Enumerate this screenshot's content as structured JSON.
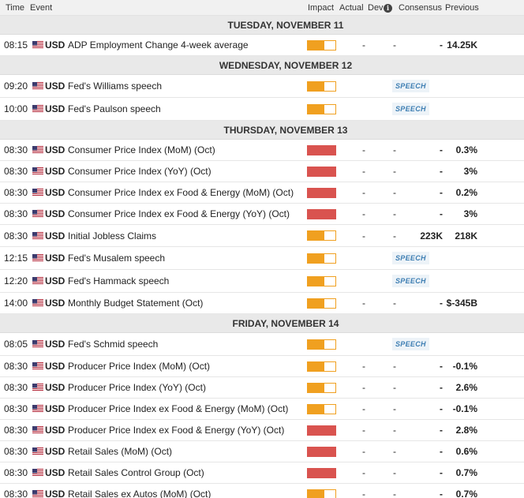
{
  "colors": {
    "high": "#d9534f",
    "medium": "#f0a020",
    "low": "#f0a020"
  },
  "header": {
    "time": "Time",
    "event": "Event",
    "impact": "Impact",
    "actual": "Actual",
    "dev": "Dev",
    "info_icon": "i",
    "consensus": "Consensus",
    "previous": "Previous"
  },
  "sections": [
    {
      "day": "TUESDAY, NOVEMBER 11",
      "rows": [
        {
          "time": "08:15",
          "currency": "USD",
          "event": "ADP Employment Change 4-week average",
          "impact": "medium",
          "impact_fill": 0.6,
          "actual": "-",
          "dev": "-",
          "consensus": "-",
          "previous": "14.25K"
        }
      ]
    },
    {
      "day": "WEDNESDAY, NOVEMBER 12",
      "rows": [
        {
          "time": "09:20",
          "currency": "USD",
          "event": "Fed's Williams speech",
          "impact": "medium",
          "impact_fill": 0.6,
          "speech": "SPEECH"
        },
        {
          "time": "10:00",
          "currency": "USD",
          "event": "Fed's Paulson speech",
          "impact": "medium",
          "impact_fill": 0.6,
          "speech": "SPEECH"
        }
      ]
    },
    {
      "day": "THURSDAY, NOVEMBER 13",
      "rows": [
        {
          "time": "08:30",
          "currency": "USD",
          "event": "Consumer Price Index (MoM) (Oct)",
          "impact": "high",
          "impact_fill": 1,
          "actual": "-",
          "dev": "-",
          "consensus": "-",
          "previous": "0.3%"
        },
        {
          "time": "08:30",
          "currency": "USD",
          "event": "Consumer Price Index (YoY) (Oct)",
          "impact": "high",
          "impact_fill": 1,
          "actual": "-",
          "dev": "-",
          "consensus": "-",
          "previous": "3%"
        },
        {
          "time": "08:30",
          "currency": "USD",
          "event": "Consumer Price Index ex Food & Energy (MoM) (Oct)",
          "impact": "high",
          "impact_fill": 1,
          "actual": "-",
          "dev": "-",
          "consensus": "-",
          "previous": "0.2%"
        },
        {
          "time": "08:30",
          "currency": "USD",
          "event": "Consumer Price Index ex Food & Energy (YoY) (Oct)",
          "impact": "high",
          "impact_fill": 1,
          "actual": "-",
          "dev": "-",
          "consensus": "-",
          "previous": "3%"
        },
        {
          "time": "08:30",
          "currency": "USD",
          "event": "Initial Jobless Claims",
          "impact": "medium",
          "impact_fill": 0.6,
          "actual": "-",
          "dev": "-",
          "consensus": "223K",
          "previous": "218K"
        },
        {
          "time": "12:15",
          "currency": "USD",
          "event": "Fed's Musalem speech",
          "impact": "medium",
          "impact_fill": 0.6,
          "speech": "SPEECH"
        },
        {
          "time": "12:20",
          "currency": "USD",
          "event": "Fed's Hammack speech",
          "impact": "medium",
          "impact_fill": 0.6,
          "speech": "SPEECH"
        },
        {
          "time": "14:00",
          "currency": "USD",
          "event": "Monthly Budget Statement (Oct)",
          "impact": "medium",
          "impact_fill": 0.6,
          "actual": "-",
          "dev": "-",
          "consensus": "-",
          "previous": "$-345B"
        }
      ]
    },
    {
      "day": "FRIDAY, NOVEMBER 14",
      "rows": [
        {
          "time": "08:05",
          "currency": "USD",
          "event": "Fed's Schmid speech",
          "impact": "medium",
          "impact_fill": 0.6,
          "speech": "SPEECH"
        },
        {
          "time": "08:30",
          "currency": "USD",
          "event": "Producer Price Index (MoM) (Oct)",
          "impact": "medium",
          "impact_fill": 0.6,
          "actual": "-",
          "dev": "-",
          "consensus": "-",
          "previous": "-0.1%"
        },
        {
          "time": "08:30",
          "currency": "USD",
          "event": "Producer Price Index (YoY) (Oct)",
          "impact": "medium",
          "impact_fill": 0.6,
          "actual": "-",
          "dev": "-",
          "consensus": "-",
          "previous": "2.6%"
        },
        {
          "time": "08:30",
          "currency": "USD",
          "event": "Producer Price Index ex Food & Energy (MoM) (Oct)",
          "impact": "medium",
          "impact_fill": 0.6,
          "actual": "-",
          "dev": "-",
          "consensus": "-",
          "previous": "-0.1%"
        },
        {
          "time": "08:30",
          "currency": "USD",
          "event": "Producer Price Index ex Food & Energy (YoY) (Oct)",
          "impact": "high",
          "impact_fill": 1,
          "actual": "-",
          "dev": "-",
          "consensus": "-",
          "previous": "2.8%"
        },
        {
          "time": "08:30",
          "currency": "USD",
          "event": "Retail Sales (MoM) (Oct)",
          "impact": "high",
          "impact_fill": 1,
          "actual": "-",
          "dev": "-",
          "consensus": "-",
          "previous": "0.6%"
        },
        {
          "time": "08:30",
          "currency": "USD",
          "event": "Retail Sales Control Group (Oct)",
          "impact": "high",
          "impact_fill": 1,
          "actual": "-",
          "dev": "-",
          "consensus": "-",
          "previous": "0.7%"
        },
        {
          "time": "08:30",
          "currency": "USD",
          "event": "Retail Sales ex Autos (MoM) (Oct)",
          "impact": "medium",
          "impact_fill": 0.6,
          "actual": "-",
          "dev": "-",
          "consensus": "-",
          "previous": "0.7%"
        }
      ]
    }
  ]
}
